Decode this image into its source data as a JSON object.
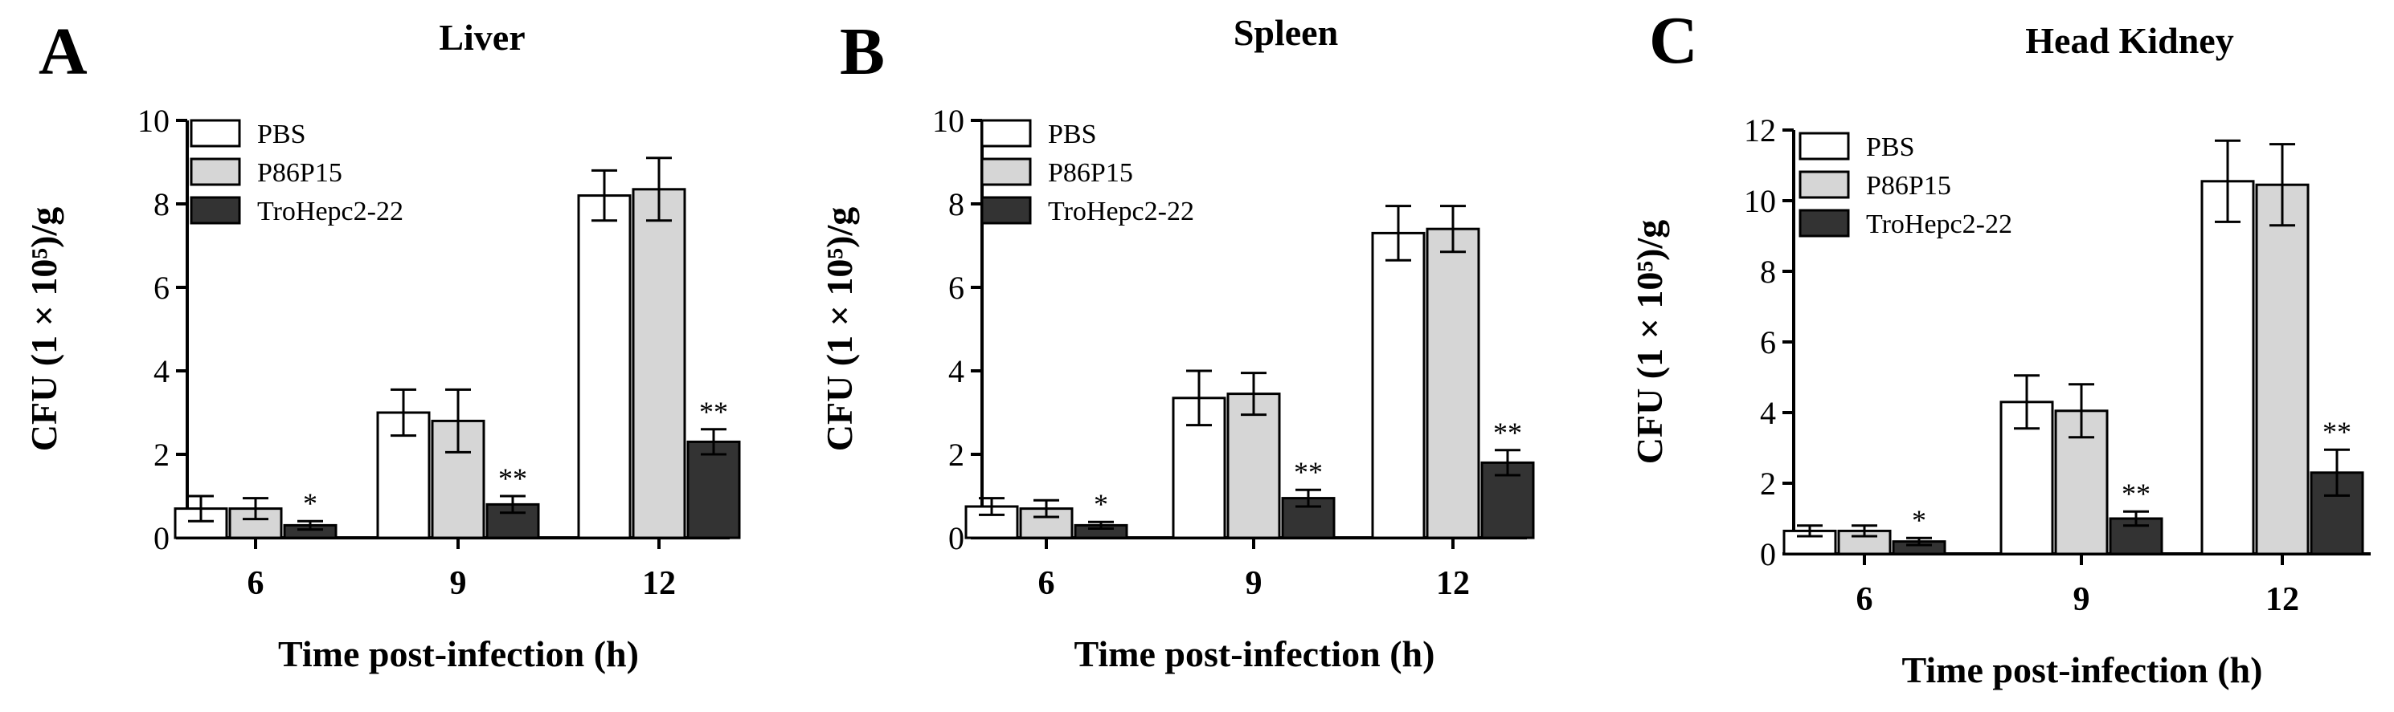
{
  "chart_data": [
    {
      "type": "bar",
      "panel": "A",
      "title": "Liver",
      "xlabel": "Time post-infection (h)",
      "ylabel": "CFU (1 × 10⁵)/g",
      "ylim": [
        0,
        10
      ],
      "yticks": [
        0,
        2,
        4,
        6,
        8,
        10
      ],
      "categories": [
        "6",
        "9",
        "12"
      ],
      "series": [
        {
          "name": "PBS",
          "fill": "#ffffff",
          "values": [
            0.7,
            3.0,
            8.2
          ],
          "errors": [
            0.3,
            0.55,
            0.6
          ],
          "sig": [
            "",
            "",
            ""
          ]
        },
        {
          "name": "P86P15",
          "fill": "#d6d6d6",
          "values": [
            0.7,
            2.8,
            8.35
          ],
          "errors": [
            0.25,
            0.75,
            0.75
          ],
          "sig": [
            "",
            "",
            ""
          ]
        },
        {
          "name": "TroHepc2-22",
          "fill": "#333333",
          "values": [
            0.3,
            0.8,
            2.3
          ],
          "errors": [
            0.1,
            0.2,
            0.3
          ],
          "sig": [
            "*",
            "**",
            "**"
          ]
        }
      ],
      "legend": "top-left"
    },
    {
      "type": "bar",
      "panel": "B",
      "title": "Spleen",
      "xlabel": "Time post-infection (h)",
      "ylabel": "CFU (1 × 10⁵)/g",
      "ylim": [
        0,
        10
      ],
      "yticks": [
        0,
        2,
        4,
        6,
        8,
        10
      ],
      "categories": [
        "6",
        "9",
        "12"
      ],
      "series": [
        {
          "name": "PBS",
          "fill": "#ffffff",
          "values": [
            0.75,
            3.35,
            7.3
          ],
          "errors": [
            0.2,
            0.65,
            0.65
          ],
          "sig": [
            "",
            "",
            ""
          ]
        },
        {
          "name": "P86P15",
          "fill": "#d6d6d6",
          "values": [
            0.7,
            3.45,
            7.4
          ],
          "errors": [
            0.2,
            0.5,
            0.55
          ],
          "sig": [
            "",
            "",
            ""
          ]
        },
        {
          "name": "TroHepc2-22",
          "fill": "#333333",
          "values": [
            0.3,
            0.95,
            1.8
          ],
          "errors": [
            0.08,
            0.2,
            0.3
          ],
          "sig": [
            "*",
            "**",
            "**"
          ]
        }
      ],
      "legend": "top-left"
    },
    {
      "type": "bar",
      "panel": "C",
      "title": "Head Kidney",
      "xlabel": "Time post-infection (h)",
      "ylabel": "CFU (1 × 10⁵)/g",
      "ylim": [
        0,
        12
      ],
      "yticks": [
        0,
        2,
        4,
        6,
        8,
        10,
        12
      ],
      "categories": [
        "6",
        "9",
        "12"
      ],
      "series": [
        {
          "name": "PBS",
          "fill": "#ffffff",
          "values": [
            0.65,
            4.3,
            10.55
          ],
          "errors": [
            0.15,
            0.75,
            1.15
          ],
          "sig": [
            "",
            "",
            ""
          ]
        },
        {
          "name": "P86P15",
          "fill": "#d6d6d6",
          "values": [
            0.65,
            4.05,
            10.45
          ],
          "errors": [
            0.15,
            0.75,
            1.15
          ],
          "sig": [
            "",
            "",
            ""
          ]
        },
        {
          "name": "TroHepc2-22",
          "fill": "#333333",
          "values": [
            0.35,
            1.0,
            2.3
          ],
          "errors": [
            0.1,
            0.2,
            0.65
          ],
          "sig": [
            "*",
            "**",
            "**"
          ]
        }
      ],
      "legend": "top-left"
    }
  ]
}
